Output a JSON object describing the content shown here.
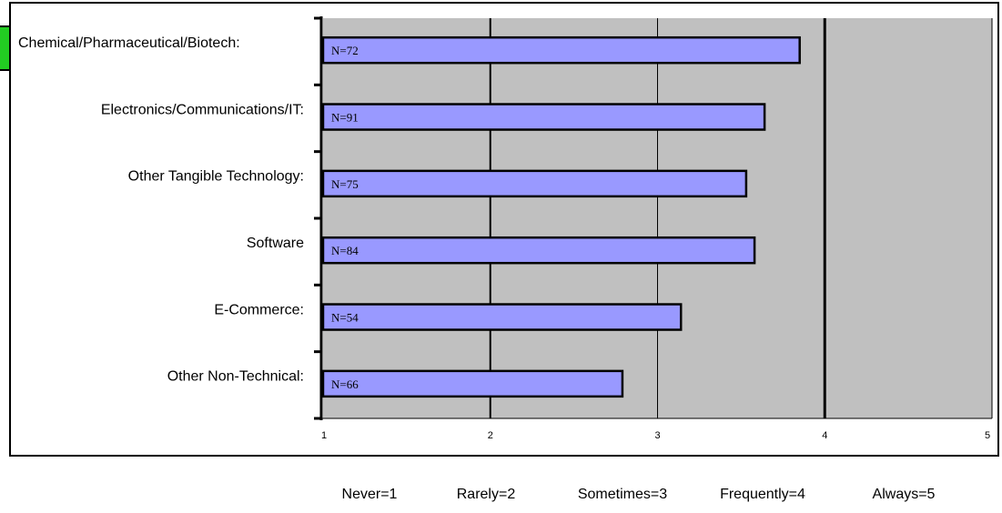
{
  "chart_data": {
    "type": "bar",
    "orientation": "horizontal",
    "categories": [
      "Chemical/Pharmaceutical/Biotech:",
      "Electronics/Communications/IT:",
      "Other Tangible Technology:",
      "Software",
      "E-Commerce:",
      "Other Non-Technical:"
    ],
    "values": [
      3.85,
      3.64,
      3.53,
      3.58,
      3.14,
      2.79
    ],
    "data_labels": [
      "N=72",
      "N=91",
      "N=75",
      "N=84",
      "N=54",
      "N=66"
    ],
    "xlim": [
      1,
      5
    ],
    "x_ticks": [
      "1",
      "2",
      "3",
      "4",
      "5"
    ],
    "x_scale_labels": [
      "Never=1",
      "Rarely=2",
      "Sometimes=3",
      "Frequently=4",
      "Always=5"
    ],
    "grid": true,
    "colors": {
      "bar": "#9999ff",
      "plot_background": "#c0c0c0",
      "marker": "#22cc22"
    }
  }
}
